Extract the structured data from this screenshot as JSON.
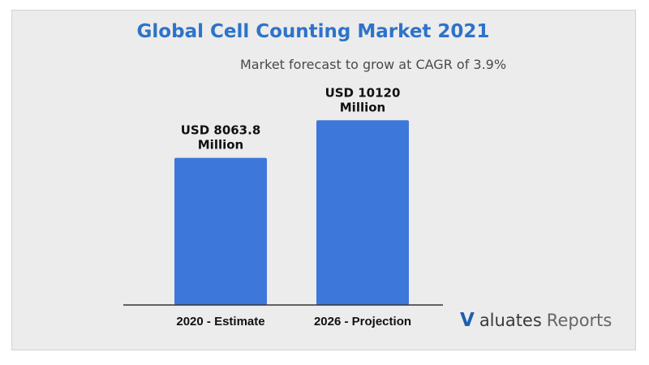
{
  "title": "Global Cell Counting Market 2021",
  "subtitle": "Market forecast to grow at CAGR of 3.9%",
  "brand": {
    "mark": "V",
    "name": "aluates",
    "suffix": "Reports"
  },
  "colors": {
    "bar": "#3d77d9",
    "title": "#2d73c9",
    "background": "#ececec"
  },
  "chart_data": {
    "type": "bar",
    "title": "Global Cell Counting Market 2021",
    "subtitle": "Market forecast to grow at CAGR of 3.9%",
    "categories": [
      "2020 - Estimate",
      "2026 - Projection"
    ],
    "values": [
      8063.8,
      10120
    ],
    "data_labels": [
      [
        "USD 8063.8",
        "Million"
      ],
      [
        "USD 10120",
        "Million"
      ]
    ],
    "ylim": [
      0,
      12000
    ],
    "grid": false,
    "legend": "none"
  }
}
